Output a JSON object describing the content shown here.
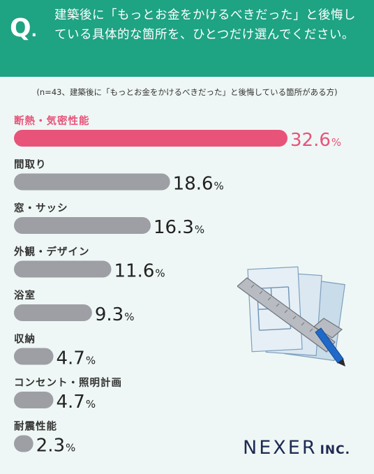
{
  "header": {
    "q_mark": "Q",
    "q_dot": ".",
    "question": "建築後に「もっとお金をかけるべきだった」と後悔している具体的な箇所を、ひとつだけ選んでください。"
  },
  "subtitle": "(n=43、建築後に「もっとお金をかけるべきだった」と後悔している箇所がある方)",
  "logo": {
    "main": "NEXER",
    "suffix": "INC."
  },
  "colors": {
    "header": "#1ea383",
    "highlight": "#e8537a",
    "bar": "#9e9fa4",
    "background": "#eef7f5"
  },
  "chart_data": {
    "type": "bar",
    "orientation": "horizontal",
    "unit": "%",
    "categories": [
      "断熱・気密性能",
      "間取り",
      "窓・サッシ",
      "外観・デザイン",
      "浴室",
      "収納",
      "コンセント・照明計画",
      "耐震性能"
    ],
    "values": [
      32.6,
      18.6,
      16.3,
      11.6,
      9.3,
      4.7,
      4.7,
      2.3
    ],
    "highlight_index": 0
  }
}
